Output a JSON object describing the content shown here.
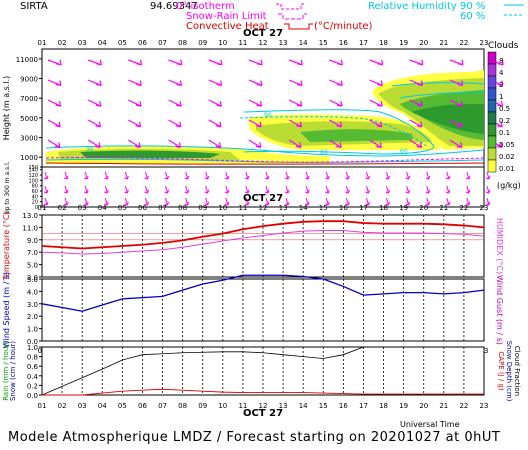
{
  "header": {
    "site": "SIRTA",
    "coords": "94.69347",
    "isotherm_label": "0° isotherm",
    "snowrain_label": "Snow-Rain Limit",
    "convective_label": "Convective Heat",
    "convective_unit": "(°C/minute)",
    "rh_label": "Relative Humidity",
    "rh_90": "90 %",
    "rh_60": "60 %"
  },
  "date_label": "OCT 27",
  "hours": [
    "01",
    "02",
    "03",
    "04",
    "05",
    "06",
    "07",
    "08",
    "09",
    "10",
    "11",
    "12",
    "13",
    "14",
    "15",
    "16",
    "17",
    "18",
    "19",
    "20",
    "21",
    "22",
    "23"
  ],
  "footer": "Modele Atmospherique LMDZ / Forecast starting on 20201027 at 0hUT",
  "universal_time": "Universal Time",
  "colors": {
    "temperature": "#e00000",
    "humidex": "#e040e0",
    "wind_speed": "#0000c0",
    "wind_gust": "#c000c0",
    "rain": "#00aa00",
    "snow": "#0000aa",
    "cloud_fraction": "#000000",
    "cape": "#e00000",
    "wind_arrow": "#ff00ff",
    "rh": "#00c8e0"
  },
  "chart_data": [
    {
      "type": "heatmap",
      "panel": "Clouds / height-time cross section",
      "ylabel": "Height (m a.s.l.)",
      "yticks": [
        1000,
        3000,
        5000,
        7000,
        9000,
        11000
      ],
      "ylim": [
        0,
        12000
      ],
      "lower_ylabel": "Up to 300 m a.s.l.",
      "lower_yticks": [
        0,
        20,
        40,
        60,
        80,
        100,
        120,
        140,
        150
      ],
      "legend_title": "Clouds",
      "legend_unit": "(g/kg)",
      "legend_levels": [
        "8",
        "4",
        "2",
        "1",
        "0.5",
        "0.2",
        "0.1",
        "0.05",
        "0.02",
        "0.01"
      ],
      "legend_colors": [
        "#cc00cc",
        "#aa33dd",
        "#6644dd",
        "#3355cc",
        "#2266aa",
        "#1f7a4a",
        "#2e9a2e",
        "#55bb33",
        "#bbdd33",
        "#ffff44"
      ],
      "rh_label_values": [
        "90",
        "60"
      ]
    },
    {
      "type": "line",
      "panel": "Temperature / Humidex",
      "x": [
        "01",
        "02",
        "03",
        "04",
        "05",
        "06",
        "07",
        "08",
        "09",
        "10",
        "11",
        "12",
        "13",
        "14",
        "15",
        "16",
        "17",
        "18",
        "19",
        "20",
        "21",
        "22",
        "23"
      ],
      "yticks": [
        "3.0",
        "5.0",
        "7.0",
        "9.0",
        "11.0",
        "13.0"
      ],
      "ylim": [
        3,
        13
      ],
      "ylabel": "Temperature (°C)",
      "ylabel_right": "HUMIDEX (°C)",
      "series": [
        {
          "name": "Temperature",
          "values": [
            8.0,
            7.8,
            7.6,
            7.8,
            8.0,
            8.2,
            8.5,
            8.9,
            9.5,
            10.0,
            10.7,
            11.2,
            11.6,
            11.9,
            12.0,
            12.0,
            11.7,
            11.6,
            11.6,
            11.6,
            11.5,
            11.3,
            11.0
          ]
        },
        {
          "name": "Humidex",
          "values": [
            7.0,
            6.9,
            6.7,
            6.8,
            7.0,
            7.2,
            7.4,
            7.8,
            8.3,
            8.8,
            9.3,
            9.7,
            10.1,
            10.4,
            10.5,
            10.5,
            10.2,
            10.1,
            10.1,
            10.1,
            10.0,
            9.9,
            9.6
          ]
        }
      ]
    },
    {
      "type": "line",
      "panel": "Wind Speed / Wind Gust",
      "x": [
        "01",
        "02",
        "03",
        "04",
        "05",
        "06",
        "07",
        "08",
        "09",
        "10",
        "11",
        "12",
        "13",
        "14",
        "15",
        "16",
        "17",
        "18",
        "19",
        "20",
        "21",
        "22",
        "23"
      ],
      "yticks": [
        "0.0",
        "1.0",
        "2.0",
        "3.0",
        "4.0",
        "5.0"
      ],
      "ylim": [
        0,
        5
      ],
      "ylabel": "Wind Speed (m / s)",
      "ylabel_right": "Wind Gust (m / s)",
      "series": [
        {
          "name": "Wind Speed",
          "values": [
            3.0,
            2.7,
            2.4,
            2.9,
            3.4,
            3.5,
            3.6,
            4.1,
            4.6,
            4.9,
            5.3,
            5.3,
            5.3,
            5.2,
            5.0,
            4.4,
            3.7,
            3.8,
            3.9,
            3.9,
            3.8,
            3.9,
            4.1
          ]
        }
      ]
    },
    {
      "type": "line",
      "panel": "Rain / Snow / CAPE",
      "x": [
        "01",
        "02",
        "03",
        "04",
        "05",
        "06",
        "07",
        "08",
        "09",
        "10",
        "11",
        "12",
        "13",
        "14",
        "15",
        "16",
        "17",
        "18",
        "19",
        "20",
        "21",
        "22",
        "23"
      ],
      "yticks": [
        "0.0",
        "0.2",
        "0.4",
        "0.6",
        "0.8",
        "1.0"
      ],
      "ylim": [
        0,
        1
      ],
      "ylabel": "Rain (mm / hour)",
      "ylabel2": "Snow (cm / hour)",
      "ylabel_right": "CAPE (J / g)",
      "ylabel_right2": "Snow Depth (cm)",
      "ylabel_right3": "Cloud Fraction",
      "series": [
        {
          "name": "Cloud Fraction",
          "values": [
            0.0,
            0.18,
            0.36,
            0.54,
            0.73,
            0.84,
            0.86,
            0.88,
            0.89,
            0.9,
            0.9,
            0.88,
            0.84,
            0.8,
            0.76,
            0.84,
            1.0,
            1.0,
            1.0,
            1.0,
            1.0,
            1.0,
            1.0
          ]
        },
        {
          "name": "CAPE",
          "values": [
            0.0,
            0.0,
            0.0,
            0.04,
            0.08,
            0.1,
            0.12,
            0.1,
            0.08,
            0.06,
            0.05,
            0.05,
            0.05,
            0.05,
            0.04,
            0.03,
            0.02,
            0.02,
            0.02,
            0.02,
            0.02,
            0.02,
            0.02
          ]
        }
      ]
    }
  ]
}
